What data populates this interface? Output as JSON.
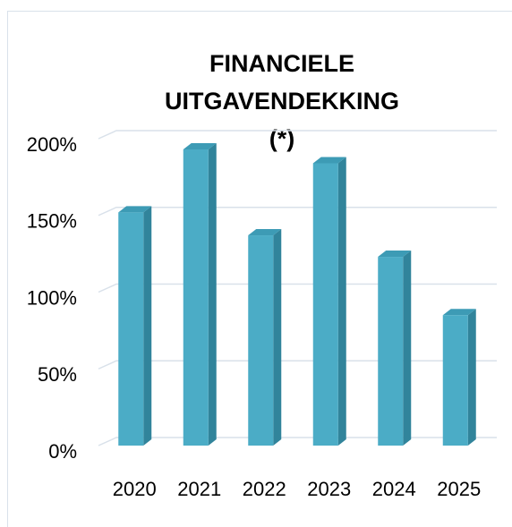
{
  "chart_data": {
    "type": "bar3d",
    "title": "FINANCIELE UITGAVENDEKKING (*)",
    "categories": [
      "2020",
      "2021",
      "2022",
      "2023",
      "2024",
      "2025"
    ],
    "values": [
      152,
      193,
      137,
      184,
      123,
      85
    ],
    "color": "#4bacc6",
    "ylim": [
      0,
      200
    ],
    "yticks": [
      {
        "value": 0,
        "label": "0%"
      },
      {
        "value": 50,
        "label": "50%"
      },
      {
        "value": 100,
        "label": "100%"
      },
      {
        "value": 150,
        "label": "150%"
      },
      {
        "value": 200,
        "label": "200%"
      }
    ],
    "grid": true
  }
}
